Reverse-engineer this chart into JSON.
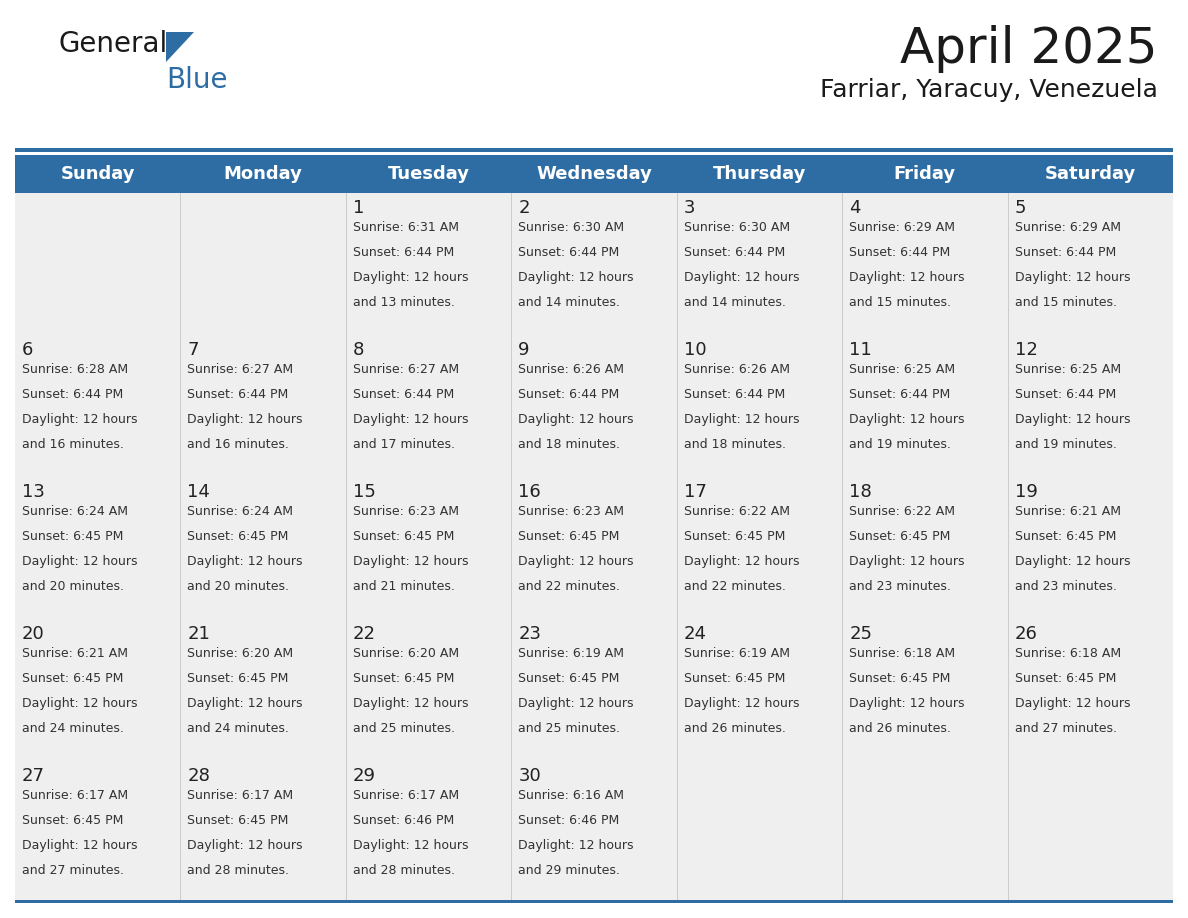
{
  "title": "April 2025",
  "subtitle": "Farriar, Yaracuy, Venezuela",
  "header_bg_color": "#2E6DA4",
  "header_text_color": "#FFFFFF",
  "cell_bg_color": "#EFEFEF",
  "border_color": "#2E6DA4",
  "text_color": "#333333",
  "days_of_week": [
    "Sunday",
    "Monday",
    "Tuesday",
    "Wednesday",
    "Thursday",
    "Friday",
    "Saturday"
  ],
  "weeks": [
    [
      {
        "day": null,
        "sunrise": null,
        "sunset": null,
        "daylight": null
      },
      {
        "day": null,
        "sunrise": null,
        "sunset": null,
        "daylight": null
      },
      {
        "day": 1,
        "sunrise": "6:31 AM",
        "sunset": "6:44 PM",
        "daylight": "12 hours and 13 minutes."
      },
      {
        "day": 2,
        "sunrise": "6:30 AM",
        "sunset": "6:44 PM",
        "daylight": "12 hours and 14 minutes."
      },
      {
        "day": 3,
        "sunrise": "6:30 AM",
        "sunset": "6:44 PM",
        "daylight": "12 hours and 14 minutes."
      },
      {
        "day": 4,
        "sunrise": "6:29 AM",
        "sunset": "6:44 PM",
        "daylight": "12 hours and 15 minutes."
      },
      {
        "day": 5,
        "sunrise": "6:29 AM",
        "sunset": "6:44 PM",
        "daylight": "12 hours and 15 minutes."
      }
    ],
    [
      {
        "day": 6,
        "sunrise": "6:28 AM",
        "sunset": "6:44 PM",
        "daylight": "12 hours and 16 minutes."
      },
      {
        "day": 7,
        "sunrise": "6:27 AM",
        "sunset": "6:44 PM",
        "daylight": "12 hours and 16 minutes."
      },
      {
        "day": 8,
        "sunrise": "6:27 AM",
        "sunset": "6:44 PM",
        "daylight": "12 hours and 17 minutes."
      },
      {
        "day": 9,
        "sunrise": "6:26 AM",
        "sunset": "6:44 PM",
        "daylight": "12 hours and 18 minutes."
      },
      {
        "day": 10,
        "sunrise": "6:26 AM",
        "sunset": "6:44 PM",
        "daylight": "12 hours and 18 minutes."
      },
      {
        "day": 11,
        "sunrise": "6:25 AM",
        "sunset": "6:44 PM",
        "daylight": "12 hours and 19 minutes."
      },
      {
        "day": 12,
        "sunrise": "6:25 AM",
        "sunset": "6:44 PM",
        "daylight": "12 hours and 19 minutes."
      }
    ],
    [
      {
        "day": 13,
        "sunrise": "6:24 AM",
        "sunset": "6:45 PM",
        "daylight": "12 hours and 20 minutes."
      },
      {
        "day": 14,
        "sunrise": "6:24 AM",
        "sunset": "6:45 PM",
        "daylight": "12 hours and 20 minutes."
      },
      {
        "day": 15,
        "sunrise": "6:23 AM",
        "sunset": "6:45 PM",
        "daylight": "12 hours and 21 minutes."
      },
      {
        "day": 16,
        "sunrise": "6:23 AM",
        "sunset": "6:45 PM",
        "daylight": "12 hours and 22 minutes."
      },
      {
        "day": 17,
        "sunrise": "6:22 AM",
        "sunset": "6:45 PM",
        "daylight": "12 hours and 22 minutes."
      },
      {
        "day": 18,
        "sunrise": "6:22 AM",
        "sunset": "6:45 PM",
        "daylight": "12 hours and 23 minutes."
      },
      {
        "day": 19,
        "sunrise": "6:21 AM",
        "sunset": "6:45 PM",
        "daylight": "12 hours and 23 minutes."
      }
    ],
    [
      {
        "day": 20,
        "sunrise": "6:21 AM",
        "sunset": "6:45 PM",
        "daylight": "12 hours and 24 minutes."
      },
      {
        "day": 21,
        "sunrise": "6:20 AM",
        "sunset": "6:45 PM",
        "daylight": "12 hours and 24 minutes."
      },
      {
        "day": 22,
        "sunrise": "6:20 AM",
        "sunset": "6:45 PM",
        "daylight": "12 hours and 25 minutes."
      },
      {
        "day": 23,
        "sunrise": "6:19 AM",
        "sunset": "6:45 PM",
        "daylight": "12 hours and 25 minutes."
      },
      {
        "day": 24,
        "sunrise": "6:19 AM",
        "sunset": "6:45 PM",
        "daylight": "12 hours and 26 minutes."
      },
      {
        "day": 25,
        "sunrise": "6:18 AM",
        "sunset": "6:45 PM",
        "daylight": "12 hours and 26 minutes."
      },
      {
        "day": 26,
        "sunrise": "6:18 AM",
        "sunset": "6:45 PM",
        "daylight": "12 hours and 27 minutes."
      }
    ],
    [
      {
        "day": 27,
        "sunrise": "6:17 AM",
        "sunset": "6:45 PM",
        "daylight": "12 hours and 27 minutes."
      },
      {
        "day": 28,
        "sunrise": "6:17 AM",
        "sunset": "6:45 PM",
        "daylight": "12 hours and 28 minutes."
      },
      {
        "day": 29,
        "sunrise": "6:17 AM",
        "sunset": "6:46 PM",
        "daylight": "12 hours and 28 minutes."
      },
      {
        "day": 30,
        "sunrise": "6:16 AM",
        "sunset": "6:46 PM",
        "daylight": "12 hours and 29 minutes."
      },
      {
        "day": null,
        "sunrise": null,
        "sunset": null,
        "daylight": null
      },
      {
        "day": null,
        "sunrise": null,
        "sunset": null,
        "daylight": null
      },
      {
        "day": null,
        "sunrise": null,
        "sunset": null,
        "daylight": null
      }
    ]
  ],
  "logo_text1": "General",
  "logo_text2": "Blue",
  "logo_text_color1": "#1a1a1a",
  "logo_text_color2": "#2E6DA4",
  "logo_triangle_color": "#2E6DA4",
  "title_fontsize": 36,
  "subtitle_fontsize": 18,
  "header_fontsize": 13,
  "day_num_fontsize": 13,
  "cell_text_fontsize": 9
}
